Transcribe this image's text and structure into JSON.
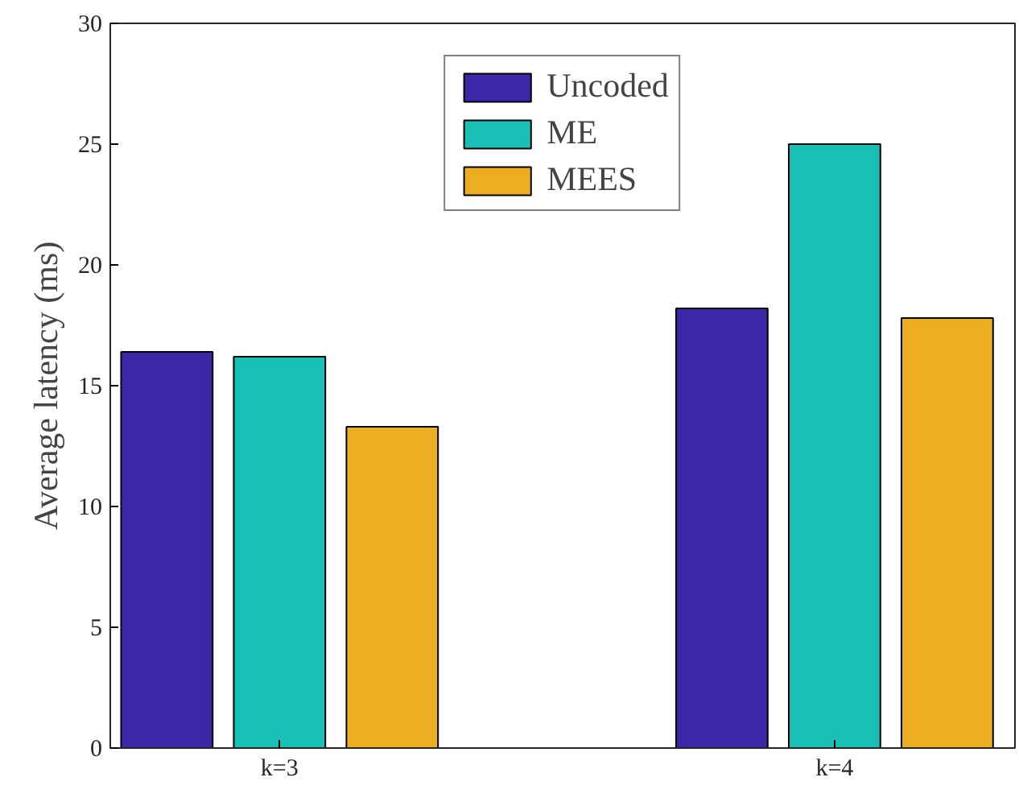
{
  "chart_data": {
    "type": "bar",
    "ylabel": "Average latency (ms)",
    "categories": [
      "k=3",
      "k=4"
    ],
    "series": [
      {
        "name": "Uncoded",
        "color": "#3c27a8",
        "values": [
          16.4,
          18.2
        ]
      },
      {
        "name": "ME",
        "color": "#19bfb5",
        "values": [
          16.2,
          25.0
        ]
      },
      {
        "name": "MEES",
        "color": "#ebad22",
        "values": [
          13.3,
          17.8
        ]
      }
    ],
    "ylim": [
      0,
      30
    ],
    "yticks": [
      0,
      5,
      10,
      15,
      20,
      25,
      30
    ],
    "grid": false,
    "legend": "top"
  }
}
